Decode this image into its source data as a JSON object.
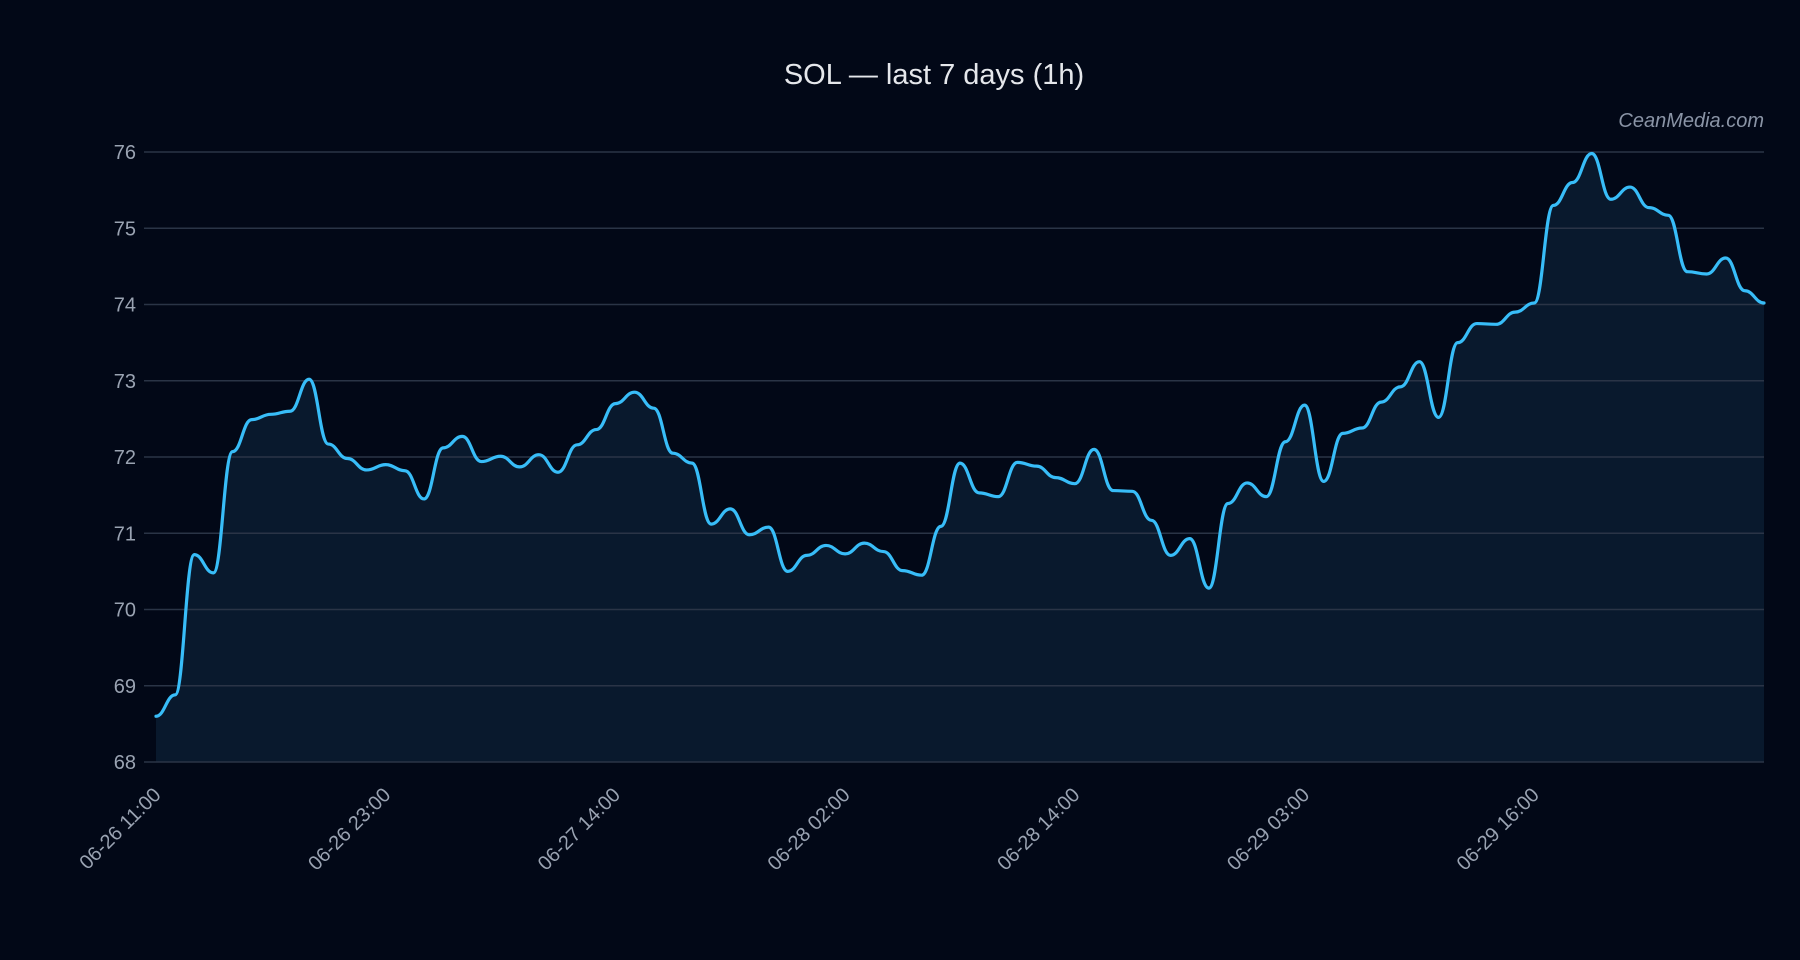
{
  "chart_data": {
    "type": "area",
    "title": "SOL — last 7 days (1h)",
    "watermark": "CeanMedia.com",
    "xlabel": "",
    "ylabel": "",
    "ylim": [
      68,
      76
    ],
    "yticks": [
      68,
      69,
      70,
      71,
      72,
      73,
      74,
      75,
      76
    ],
    "xtick_labels": [
      "06-26 11:00",
      "06-26 23:00",
      "06-27 14:00",
      "06-28 02:00",
      "06-28 14:00",
      "06-29 03:00",
      "06-29 16:00"
    ],
    "grid": true,
    "colors": {
      "line": "#38bdf8",
      "fill": "#0a1a2e",
      "background": "#020817",
      "grid": "#2a3446"
    },
    "series": [
      {
        "values": [
          68.6,
          68.88,
          70.72,
          70.48,
          72.07,
          72.49,
          72.56,
          72.6,
          73.02,
          72.17,
          71.98,
          71.83,
          71.9,
          71.82,
          71.45,
          72.12,
          72.27,
          71.94,
          72.01,
          71.87,
          72.03,
          71.8,
          72.16,
          72.36,
          72.7,
          72.85,
          72.64,
          72.05,
          71.92,
          71.12,
          71.32,
          70.98,
          71.08,
          70.5,
          70.71,
          70.84,
          70.73,
          70.87,
          70.76,
          70.51,
          70.45,
          71.09,
          71.92,
          71.53,
          71.48,
          71.93,
          71.88,
          71.73,
          71.65,
          72.1,
          71.56,
          71.55,
          71.17,
          70.71,
          70.93,
          70.28,
          71.39,
          71.66,
          71.48,
          72.2,
          72.68,
          71.68,
          72.31,
          72.38,
          72.72,
          72.92,
          73.25,
          72.52,
          73.5,
          73.75,
          73.74,
          73.9,
          74.02,
          75.3,
          75.6,
          75.98,
          75.38,
          75.54,
          75.27,
          75.17,
          74.43,
          74.4,
          74.61,
          74.18,
          74.02
        ]
      }
    ]
  }
}
